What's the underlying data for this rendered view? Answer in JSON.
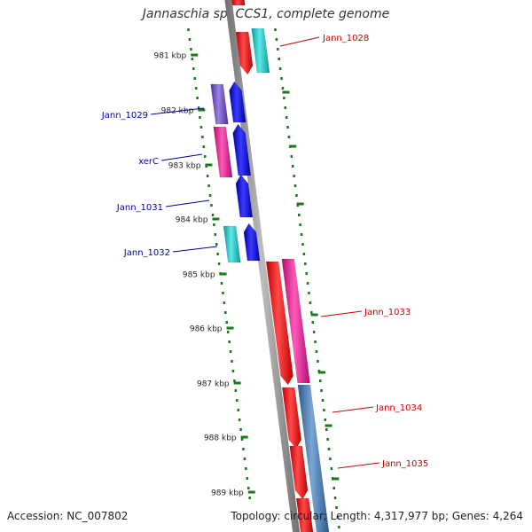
{
  "title": "Jannaschia sp. CCS1, complete genome",
  "accession": "Accession: NC_007802",
  "topology": "Topology: circular; Length: 4,317,977 bp; Genes: 4,264",
  "colors": {
    "red": "#ff0000",
    "cyan": "#1fc4c4",
    "purple": "#7050c8",
    "blue": "#0000ee",
    "magenta": "#ee1493",
    "steelblue": "#4a7fb5",
    "tick": "#1a7a1a",
    "backbone": "#888888",
    "label_red": "#cc0000",
    "label_blue": "#0000aa"
  },
  "kbp_ticks": [
    "981 kbp",
    "982 kbp",
    "983 kbp",
    "984 kbp",
    "985 kbp",
    "986 kbp",
    "987 kbp",
    "988 kbp",
    "989 kbp"
  ],
  "genes": [
    {
      "label": "Jann_1028",
      "strand": "minus",
      "color": "cyan"
    },
    {
      "label": "Jann_1029",
      "strand": "plus",
      "color": "purple"
    },
    {
      "label": "xerC",
      "strand": "plus",
      "color": "magenta"
    },
    {
      "label": "Jann_1031",
      "strand": "plus",
      "color": "blue"
    },
    {
      "label": "Jann_1032",
      "strand": "plus",
      "color": "cyan"
    },
    {
      "label": "Jann_1033",
      "strand": "minus",
      "color": "magenta"
    },
    {
      "label": "Jann_1034",
      "strand": "minus",
      "color": "steelblue"
    },
    {
      "label": "Jann_1035",
      "strand": "minus",
      "color": "red"
    }
  ]
}
